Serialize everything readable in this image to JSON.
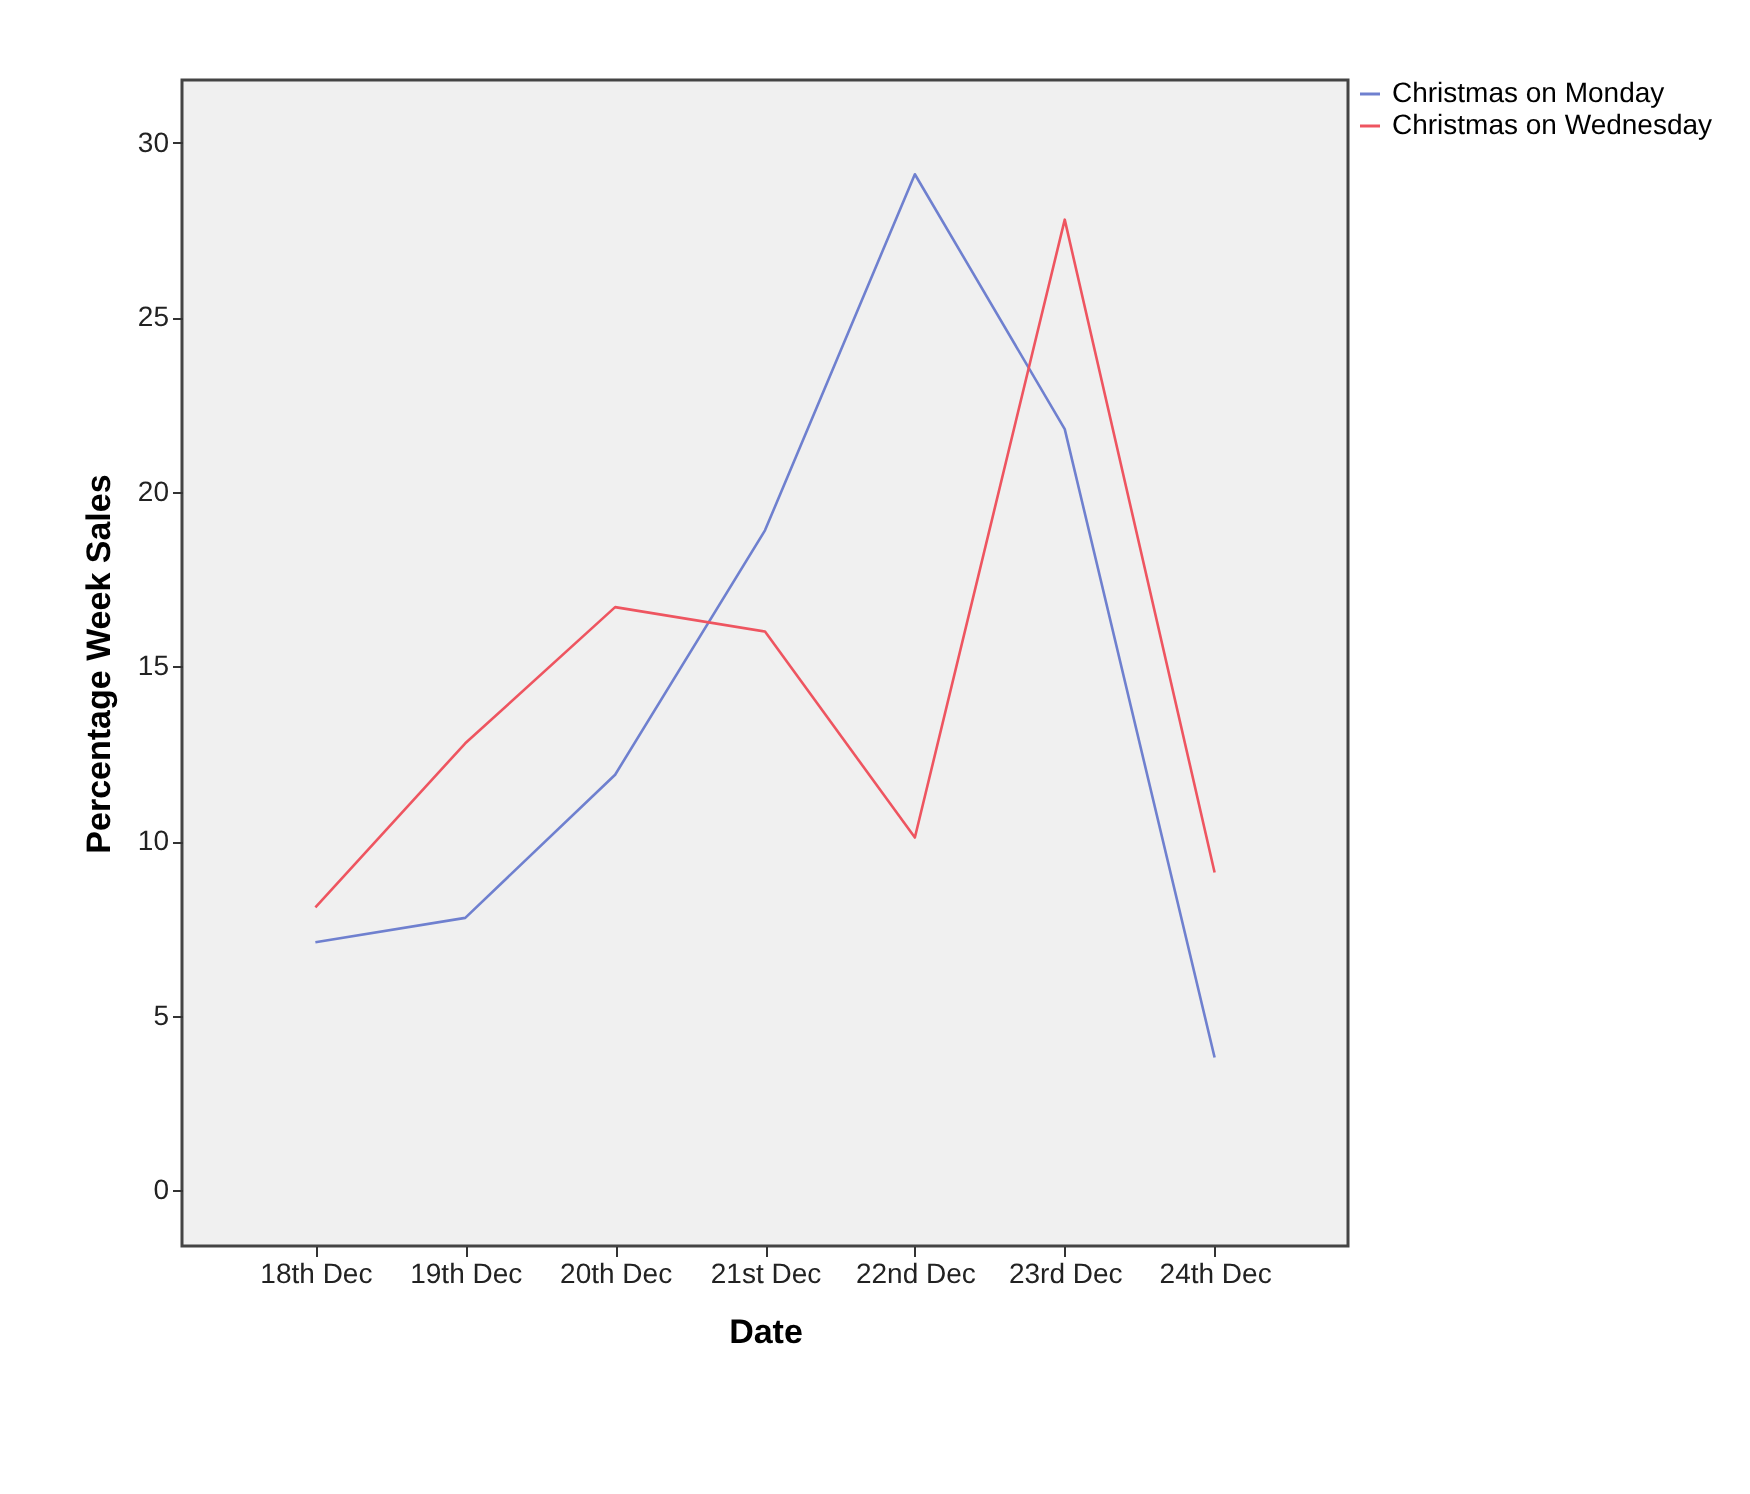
{
  "chart_data": {
    "type": "line",
    "xlabel": "Date",
    "ylabel": "Percentage Week Sales",
    "categories": [
      "18th Dec",
      "19th Dec",
      "20th Dec",
      "21st Dec",
      "22nd Dec",
      "23rd Dec",
      "24th Dec"
    ],
    "series": [
      {
        "name": "Christmas on Monday",
        "color": "#6f80cf",
        "values": [
          7.1,
          7.8,
          11.9,
          18.9,
          29.1,
          21.8,
          3.8
        ]
      },
      {
        "name": "Christmas on Wednesday",
        "color": "#ee5560",
        "values": [
          8.1,
          12.8,
          16.7,
          16.0,
          10.1,
          27.8,
          9.1
        ]
      }
    ],
    "ylim": [
      -1.6,
      31.8
    ],
    "yticks": [
      0,
      5,
      10,
      15,
      20,
      25,
      30
    ],
    "grid": false,
    "legend": "top right",
    "marker": "none",
    "line_style": "solid"
  }
}
